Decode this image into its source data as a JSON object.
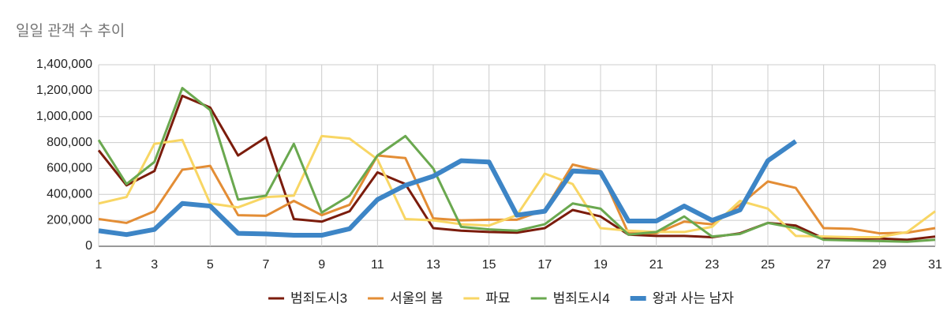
{
  "chart_data": {
    "type": "line",
    "title": "일일 관객 수 추이",
    "x": [
      1,
      2,
      3,
      4,
      5,
      6,
      7,
      8,
      9,
      10,
      11,
      12,
      13,
      14,
      15,
      16,
      17,
      18,
      19,
      20,
      21,
      22,
      23,
      24,
      25,
      26,
      27,
      28,
      29,
      30,
      31
    ],
    "xlim": [
      1,
      31
    ],
    "xticks": [
      1,
      3,
      5,
      7,
      9,
      11,
      13,
      15,
      17,
      19,
      21,
      23,
      25,
      27,
      29,
      31
    ],
    "ylim": [
      0,
      1400000
    ],
    "yticks": [
      0,
      {
        "value": 200000,
        "label": "200,000"
      },
      {
        "value": 400000,
        "label": "400,000"
      },
      {
        "value": 600000,
        "label": "600,000"
      },
      {
        "value": 800000,
        "label": "800,000"
      },
      {
        "value": 1000000,
        "label": "1,000,000"
      },
      {
        "value": 1200000,
        "label": "1,200,000"
      },
      {
        "value": 1400000,
        "label": "1,400,000"
      }
    ],
    "grid": true,
    "legend": "bottom",
    "series": [
      {
        "name": "범죄도시3",
        "color": "#7b1c0c",
        "width": 3,
        "values": [
          740000,
          470000,
          580000,
          1160000,
          1070000,
          700000,
          840000,
          210000,
          190000,
          270000,
          570000,
          480000,
          140000,
          120000,
          110000,
          105000,
          140000,
          280000,
          230000,
          90000,
          80000,
          80000,
          70000,
          100000,
          180000,
          160000,
          60000,
          60000,
          60000,
          50000,
          75000
        ]
      },
      {
        "name": "서울의 봄",
        "color": "#e38d35",
        "width": 3,
        "values": [
          210000,
          180000,
          270000,
          590000,
          620000,
          240000,
          235000,
          350000,
          240000,
          320000,
          700000,
          680000,
          215000,
          200000,
          205000,
          205000,
          280000,
          630000,
          580000,
          100000,
          100000,
          190000,
          170000,
          320000,
          500000,
          450000,
          140000,
          135000,
          100000,
          105000,
          140000
        ]
      },
      {
        "name": "파묘",
        "color": "#f8d664",
        "width": 3,
        "values": [
          330000,
          380000,
          790000,
          820000,
          330000,
          300000,
          380000,
          390000,
          850000,
          830000,
          670000,
          210000,
          200000,
          170000,
          160000,
          240000,
          560000,
          480000,
          140000,
          120000,
          110000,
          110000,
          150000,
          350000,
          290000,
          80000,
          75000,
          70000,
          70000,
          110000,
          270000
        ]
      },
      {
        "name": "범죄도시4",
        "color": "#6aa84f",
        "width": 3,
        "values": [
          820000,
          480000,
          650000,
          1220000,
          1050000,
          360000,
          390000,
          790000,
          260000,
          390000,
          700000,
          850000,
          600000,
          150000,
          130000,
          120000,
          170000,
          330000,
          290000,
          90000,
          110000,
          230000,
          75000,
          95000,
          180000,
          140000,
          50000,
          45000,
          40000,
          35000,
          50000
        ]
      },
      {
        "name": "왕과 사는 남자",
        "color": "#3d85c6",
        "width": 6,
        "values": [
          120000,
          90000,
          130000,
          330000,
          310000,
          100000,
          95000,
          85000,
          85000,
          135000,
          360000,
          470000,
          540000,
          660000,
          650000,
          240000,
          270000,
          580000,
          570000,
          195000,
          195000,
          310000,
          200000,
          280000,
          660000,
          810000,
          null,
          null,
          null,
          null,
          null
        ]
      }
    ]
  }
}
